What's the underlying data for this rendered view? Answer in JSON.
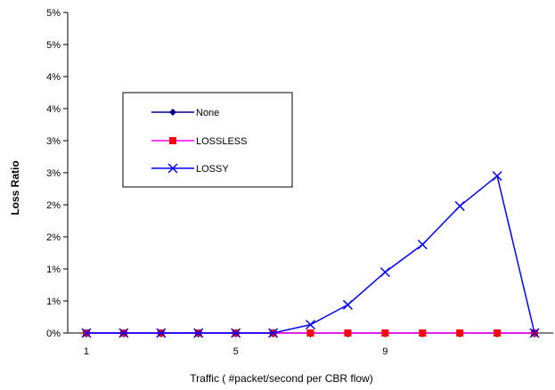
{
  "chart_data": {
    "type": "line",
    "title": "",
    "xlabel": "Traffic ( #packet/second per CBR flow)",
    "ylabel": "Loss Ratio",
    "x": [
      1,
      2,
      3,
      4,
      5,
      6,
      7,
      8,
      9,
      10,
      11,
      12,
      13
    ],
    "x_tick_values": [
      1,
      5,
      9
    ],
    "x_tick_labels": [
      "1",
      "5",
      "9"
    ],
    "xlim": [
      0.5,
      13.5
    ],
    "ylim": [
      0,
      0.05
    ],
    "y_tick_values": [
      0,
      0.005,
      0.01,
      0.015,
      0.02,
      0.025,
      0.03,
      0.035,
      0.04,
      0.045,
      0.05
    ],
    "y_tick_labels": [
      "0%",
      "1%",
      "1%",
      "2%",
      "2%",
      "3%",
      "3%",
      "4%",
      "4%",
      "5%",
      "5%"
    ],
    "grid": false,
    "legend_position": "upper-left",
    "series": [
      {
        "name": "None",
        "color": "#000080",
        "marker": "diamond",
        "values": [
          0,
          0,
          0,
          0,
          0,
          0,
          0,
          0,
          0,
          0,
          0,
          0,
          0
        ]
      },
      {
        "name": "LOSSLESS",
        "color": "#ff00ff",
        "marker_color": "#ff0000",
        "marker": "square",
        "values": [
          0,
          0,
          0,
          0,
          0,
          0,
          0,
          0,
          0,
          0,
          0,
          0,
          0
        ]
      },
      {
        "name": "LOSSY",
        "color": "#0000ff",
        "marker": "x",
        "values": [
          0,
          0,
          0,
          0,
          0,
          0,
          0.0013,
          0.0044,
          0.0095,
          0.0138,
          0.0198,
          0.0245,
          0
        ]
      }
    ]
  }
}
